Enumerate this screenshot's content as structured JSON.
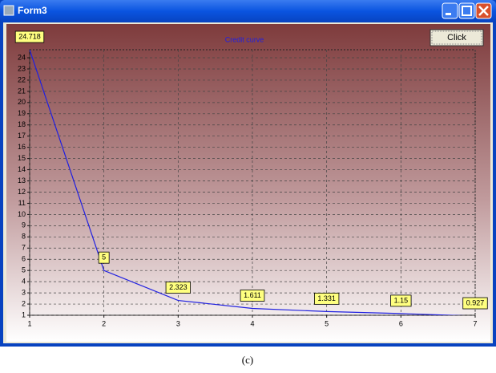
{
  "window": {
    "title": "Form3",
    "button": "Click"
  },
  "caption": "(c)",
  "chart_data": {
    "type": "line",
    "title": "Credit curve",
    "x": [
      1,
      2,
      3,
      4,
      5,
      6,
      7
    ],
    "series": [
      {
        "name": "Credit curve",
        "color": "#2020e0",
        "values": [
          24.718,
          5,
          2.323,
          1.611,
          1.331,
          1.15,
          0.927
        ]
      }
    ],
    "xlim": [
      1,
      7
    ],
    "xticks": [
      1,
      2,
      3,
      4,
      5,
      6,
      7
    ],
    "ylim": [
      1,
      24.718
    ],
    "yticks": [
      1,
      2,
      3,
      4,
      5,
      6,
      7,
      8,
      9,
      10,
      11,
      12,
      13,
      14,
      15,
      16,
      17,
      18,
      19,
      20,
      21,
      22,
      23,
      24
    ],
    "grid": true
  }
}
